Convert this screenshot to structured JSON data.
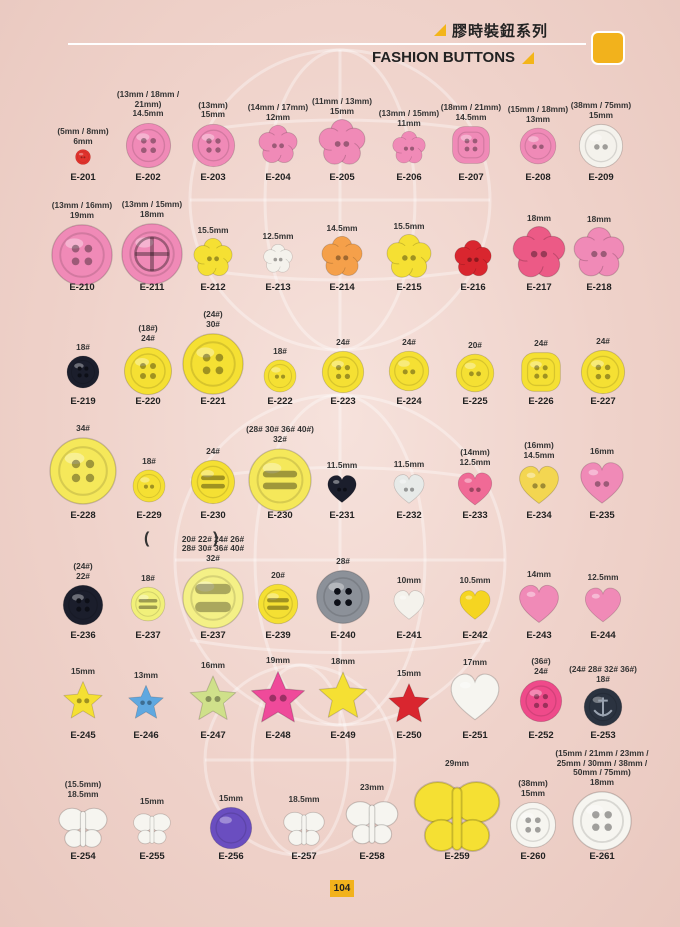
{
  "header": {
    "title_cn": "膠時裝鈕系列",
    "title_en": "FASHION BUTTONS"
  },
  "footer": {
    "page_number": "104"
  },
  "colors": {
    "background": "#f1d6cf",
    "accent": "#f2b21c",
    "pink": "#f08ab7",
    "yellow": "#f5e033"
  },
  "items": [
    {
      "code": "E-201",
      "size": "(5mm / 8mm)\n6mm",
      "shape": "round",
      "color": "#e0322c",
      "holes": "2h"
    },
    {
      "code": "E-202",
      "size": "(13mm / 18mm /\n21mm)\n14.5mm",
      "shape": "round",
      "color": "#f08ab7",
      "holes": "4h"
    },
    {
      "code": "E-203",
      "size": "(13mm)\n15mm",
      "shape": "round",
      "color": "#f08ab7",
      "holes": "4h"
    },
    {
      "code": "E-204",
      "size": "(14mm / 17mm)\n12mm",
      "shape": "flower",
      "color": "#f08ab7",
      "holes": "2h"
    },
    {
      "code": "E-205",
      "size": "(11mm / 13mm)\n15mm",
      "shape": "flower",
      "color": "#f08ab7",
      "holes": "2h"
    },
    {
      "code": "E-206",
      "size": "(13mm / 15mm)\n11mm",
      "shape": "flower",
      "color": "#f08ab7",
      "holes": "2h"
    },
    {
      "code": "E-207",
      "size": "(18mm / 21mm)\n14.5mm",
      "shape": "roundsquare",
      "color": "#f08ab7",
      "holes": "4h"
    },
    {
      "code": "E-208",
      "size": "(15mm / 18mm)\n13mm",
      "shape": "round",
      "color": "#f08ab7",
      "holes": "2h"
    },
    {
      "code": "E-209",
      "size": "(38mm / 75mm)\n15mm",
      "shape": "round",
      "color": "#f4f2ec",
      "holes": "2h"
    },
    {
      "code": "E-210",
      "size": "(13mm / 16mm)\n19mm",
      "shape": "round",
      "color": "#f08ab7",
      "holes": "4h"
    },
    {
      "code": "E-211",
      "size": "(13mm / 15mm)\n18mm",
      "shape": "round",
      "color": "#f08ab7",
      "holes": "cross"
    },
    {
      "code": "E-212",
      "size": "15.5mm",
      "shape": "flower",
      "color": "#f5e033",
      "holes": "2h"
    },
    {
      "code": "E-213",
      "size": "12.5mm",
      "shape": "flower",
      "color": "#f4f2ec",
      "holes": "2h"
    },
    {
      "code": "E-214",
      "size": "14.5mm",
      "shape": "flower",
      "color": "#f5a04a",
      "holes": "2h"
    },
    {
      "code": "E-215",
      "size": "15.5mm",
      "shape": "flower",
      "color": "#f5e033",
      "holes": "2h"
    },
    {
      "code": "E-216",
      "size": "",
      "shape": "flower",
      "color": "#d9262f",
      "holes": "2h"
    },
    {
      "code": "E-217",
      "size": "18mm",
      "shape": "flower",
      "color": "#ec5a86",
      "holes": "2h"
    },
    {
      "code": "E-218",
      "size": "18mm",
      "shape": "flower",
      "color": "#f08ab7",
      "holes": "2h"
    },
    {
      "code": "E-219",
      "size": "18#",
      "shape": "round",
      "color": "#1b1e2c",
      "holes": "4h"
    },
    {
      "code": "E-220",
      "size": "(18#)\n24#",
      "shape": "round",
      "color": "#f5e033",
      "holes": "4h"
    },
    {
      "code": "E-221",
      "size": "(24#)\n30#",
      "shape": "round",
      "color": "#f5e033",
      "holes": "4h"
    },
    {
      "code": "E-222",
      "size": "18#",
      "shape": "round",
      "color": "#f5e033",
      "holes": "2h"
    },
    {
      "code": "E-223",
      "size": "24#",
      "shape": "round",
      "color": "#f5e033",
      "holes": "4h"
    },
    {
      "code": "E-224",
      "size": "24#",
      "shape": "round",
      "color": "#f5e033",
      "holes": "2h"
    },
    {
      "code": "E-225",
      "size": "20#",
      "shape": "round",
      "color": "#f5e033",
      "holes": "2h"
    },
    {
      "code": "E-226",
      "size": "24#",
      "shape": "roundsquare",
      "color": "#f5e033",
      "holes": "4h"
    },
    {
      "code": "E-227",
      "size": "24#",
      "shape": "round",
      "color": "#f5e033",
      "holes": "4h"
    },
    {
      "code": "E-228",
      "size": "34#",
      "shape": "round",
      "color": "#f5e85a",
      "holes": "4h"
    },
    {
      "code": "E-229",
      "size": "18#",
      "shape": "round",
      "color": "#f5e033",
      "holes": "2h"
    },
    {
      "code": "E-230",
      "size": "24#",
      "shape": "round",
      "color": "#f5e033",
      "holes": "slots"
    },
    {
      "code": "E-230",
      "size": "(28# 30# 36# 40#)\n32#",
      "shape": "round",
      "color": "#f5e85a",
      "holes": "slots"
    },
    {
      "code": "E-231",
      "size": "11.5mm",
      "shape": "heart",
      "color": "#1b1e2c",
      "holes": "2h"
    },
    {
      "code": "E-232",
      "size": "11.5mm",
      "shape": "heart",
      "color": "#e7eae8",
      "holes": "2h"
    },
    {
      "code": "E-233",
      "size": "(14mm)\n12.5mm",
      "shape": "heart",
      "color": "#f06a96",
      "holes": "2h"
    },
    {
      "code": "E-234",
      "size": "(16mm)\n14.5mm",
      "shape": "heart",
      "color": "#f3d651",
      "holes": "2h"
    },
    {
      "code": "E-235",
      "size": "16mm",
      "shape": "heart",
      "color": "#f08ab7",
      "holes": "2h"
    },
    {
      "code": "E-236",
      "size": "(24#)\n22#",
      "shape": "round",
      "color": "#1b1e2c",
      "holes": "4h"
    },
    {
      "code": "E-237",
      "size": "18#",
      "shape": "round",
      "color": "#f1f07a",
      "holes": "slots"
    },
    {
      "code": "E-237",
      "size": "20# 22# 24# 26#\n28# 30# 36# 40#\n32#",
      "shape": "round",
      "color": "#f4f086",
      "holes": "slot1"
    },
    {
      "code": "E-239",
      "size": "20#",
      "shape": "round",
      "color": "#f5e033",
      "holes": "slots"
    },
    {
      "code": "E-240",
      "size": "28#",
      "shape": "round",
      "color": "#8c9199",
      "holes": "4h"
    },
    {
      "code": "E-241",
      "size": "10mm",
      "shape": "heart",
      "color": "#f4f2ec",
      "holes": "none"
    },
    {
      "code": "E-242",
      "size": "10.5mm",
      "shape": "heart",
      "color": "#f5d521",
      "holes": "none"
    },
    {
      "code": "E-243",
      "size": "14mm",
      "shape": "heart",
      "color": "#f08ab7",
      "holes": "none"
    },
    {
      "code": "E-244",
      "size": "12.5mm",
      "shape": "heart",
      "color": "#f08ab7",
      "holes": "none"
    },
    {
      "code": "E-245",
      "size": "15mm",
      "shape": "star",
      "color": "#f5e033",
      "holes": "2h"
    },
    {
      "code": "E-246",
      "size": "13mm",
      "shape": "star",
      "color": "#5fa8e0",
      "holes": "2h"
    },
    {
      "code": "E-247",
      "size": "16mm",
      "shape": "star",
      "color": "#cfe08a",
      "holes": "2h"
    },
    {
      "code": "E-248",
      "size": "19mm",
      "shape": "star",
      "color": "#ef4a9a",
      "holes": "2h"
    },
    {
      "code": "E-249",
      "size": "18mm",
      "shape": "star",
      "color": "#f5e033",
      "holes": "none"
    },
    {
      "code": "E-250",
      "size": "15mm",
      "shape": "star",
      "color": "#d9262f",
      "holes": "none"
    },
    {
      "code": "E-251",
      "size": "17mm",
      "shape": "heart",
      "color": "#f6f5f0",
      "holes": "none"
    },
    {
      "code": "E-252",
      "size": "(36#)\n24#",
      "shape": "round",
      "color": "#ef4a8a",
      "holes": "4h"
    },
    {
      "code": "E-253",
      "size": "(24# 28# 32# 36#)\n18#",
      "shape": "round",
      "color": "#2b3340",
      "holes": "anchor"
    },
    {
      "code": "E-254",
      "size": "(15.5mm)\n18.5mm",
      "shape": "butterfly",
      "color": "#f6f5f0",
      "holes": "none"
    },
    {
      "code": "E-255",
      "size": "15mm",
      "shape": "butterfly",
      "color": "#f6f5f0",
      "holes": "none"
    },
    {
      "code": "E-256",
      "size": "15mm",
      "shape": "round",
      "color": "#6a4ec0",
      "holes": "none"
    },
    {
      "code": "E-257",
      "size": "18.5mm",
      "shape": "butterfly",
      "color": "#f6f5f0",
      "holes": "none"
    },
    {
      "code": "E-258",
      "size": "23mm",
      "shape": "butterfly",
      "color": "#f6f5f0",
      "holes": "none"
    },
    {
      "code": "E-259",
      "size": "29mm",
      "shape": "butterfly",
      "color": "#f5e033",
      "holes": "none"
    },
    {
      "code": "E-260",
      "size": "(38mm)\n15mm",
      "shape": "round",
      "color": "#f6f5f0",
      "holes": "4h"
    },
    {
      "code": "E-261",
      "size": "(15mm / 21mm / 23mm /\n25mm / 30mm / 38mm /\n50mm / 75mm)\n18mm",
      "shape": "round",
      "color": "#f6f5f0",
      "holes": "4h"
    }
  ]
}
